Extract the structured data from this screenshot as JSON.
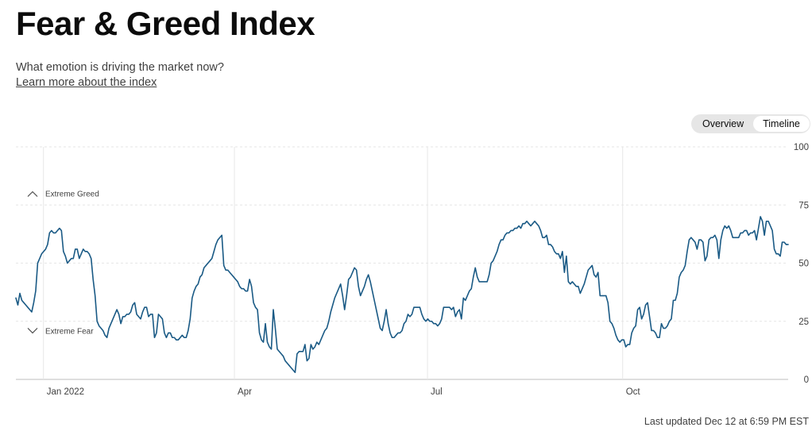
{
  "header": {
    "title": "Fear & Greed Index",
    "subtitle": "What emotion is driving the market now?",
    "learn_more": "Learn more about the index"
  },
  "toggle": {
    "overview": "Overview",
    "timeline": "Timeline",
    "active": "Timeline"
  },
  "footer": {
    "last_updated": "Last updated Dec 12 at 6:59 PM EST"
  },
  "colors": {
    "line": "#1a5a85",
    "grid": "#e6e6e6",
    "axis": "#bdbdbd",
    "text": "#404040"
  },
  "chart_data": {
    "type": "line",
    "ylim": [
      0,
      100
    ],
    "yticks": [
      0,
      25,
      50,
      75,
      100
    ],
    "xticks": [
      {
        "label": "Jan 2022",
        "x": 13
      },
      {
        "label": "Apr",
        "x": 103
      },
      {
        "label": "Jul",
        "x": 194
      },
      {
        "label": "Oct",
        "x": 286
      }
    ],
    "xlim": [
      0,
      364
    ],
    "bands": [
      {
        "label": "Extreme Greed",
        "icon": "chevron-up-icon"
      },
      {
        "label": "Extreme Fear",
        "icon": "chevron-down-icon"
      }
    ],
    "series": [
      {
        "values": [
          35,
          32,
          37,
          34,
          33,
          32,
          31,
          30,
          29,
          33,
          38,
          50,
          52,
          54,
          55,
          56,
          58,
          63,
          64,
          63,
          63,
          64,
          65,
          64,
          55,
          53,
          50,
          51,
          52,
          52,
          56,
          56,
          52,
          54,
          56,
          55,
          55,
          54,
          52,
          43,
          36,
          25,
          23,
          22,
          21,
          19,
          18,
          22,
          24,
          26,
          28,
          30,
          28,
          24,
          27,
          27,
          28,
          28,
          29,
          32,
          33,
          28,
          27,
          26,
          29,
          31,
          31,
          27,
          28,
          28,
          18,
          20,
          28,
          27,
          26,
          20,
          18,
          20,
          20,
          18,
          18,
          17,
          17,
          18,
          19,
          18,
          18,
          21,
          26,
          35,
          38,
          40,
          41,
          44,
          45,
          48,
          49,
          50,
          51,
          52,
          55,
          58,
          60,
          61,
          62,
          49,
          47,
          47,
          46,
          45,
          44,
          43,
          42,
          40,
          39,
          39,
          38,
          38,
          43,
          40,
          33,
          31,
          30,
          20,
          17,
          16,
          24,
          16,
          14,
          13,
          30,
          22,
          13,
          12,
          11,
          10,
          8,
          7,
          6,
          5,
          4,
          3,
          11,
          12,
          12,
          12,
          15,
          8,
          9,
          15,
          13,
          14,
          16,
          15,
          17,
          19,
          21,
          22,
          25,
          29,
          32,
          35,
          37,
          39,
          41,
          36,
          30,
          36,
          43,
          44,
          46,
          48,
          47,
          40,
          36,
          38,
          40,
          43,
          45,
          42,
          38,
          34,
          30,
          26,
          22,
          21,
          25,
          30,
          24,
          20,
          18,
          18,
          19,
          20,
          20,
          21,
          24,
          25,
          28,
          27,
          28,
          31,
          31,
          31,
          31,
          28,
          26,
          25,
          26,
          25,
          25,
          24,
          24,
          23,
          24,
          26,
          31,
          31,
          31,
          31,
          30,
          31,
          27,
          29,
          30,
          26,
          35,
          34,
          36,
          38,
          39,
          44,
          48,
          44,
          42,
          42,
          42,
          42,
          42,
          45,
          50,
          51,
          53,
          55,
          58,
          60,
          60,
          62,
          63,
          63,
          64,
          64,
          65,
          65,
          66,
          65,
          67,
          67,
          68,
          67,
          66,
          67,
          68,
          67,
          66,
          64,
          61,
          61,
          62,
          58,
          58,
          57,
          55,
          54,
          54,
          52,
          55,
          46,
          53,
          42,
          41,
          42,
          41,
          40,
          40,
          37,
          39,
          41,
          44,
          47,
          48,
          49,
          45,
          44,
          46,
          36,
          36,
          36,
          36,
          33,
          25,
          24,
          22,
          19,
          17,
          16,
          17,
          17,
          14,
          15,
          15,
          20,
          22,
          23,
          30,
          31,
          26,
          28,
          32,
          33,
          27,
          21,
          21,
          20,
          18,
          18,
          24,
          22,
          22,
          23,
          25,
          26,
          34,
          34,
          37,
          44,
          46,
          47,
          49,
          55,
          60,
          61,
          60,
          59,
          56,
          60,
          60,
          59,
          51,
          53,
          60,
          61,
          61,
          62,
          60,
          52,
          60,
          64,
          66,
          65,
          66,
          64,
          61,
          61,
          61,
          61,
          63,
          63,
          64,
          64,
          62,
          63,
          63,
          64,
          60,
          65,
          70,
          68,
          62,
          68,
          68,
          66,
          64,
          56,
          54,
          54,
          53,
          59,
          59,
          58,
          58
        ]
      }
    ]
  }
}
